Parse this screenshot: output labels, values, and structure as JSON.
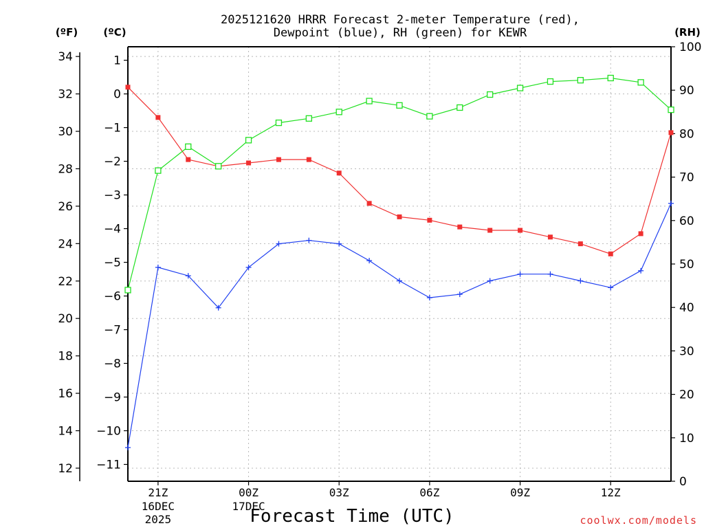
{
  "chart_data": {
    "type": "line",
    "title_line1": "2025121620 HRRR Forecast 2-meter Temperature (red),",
    "title_line2": "Dewpoint (blue), RH (green) for KEWR",
    "xlabel": "Forecast Time (UTC)",
    "credit": "coolwx.com/models",
    "left_axis_f_label": "(ºF)",
    "left_axis_c_label": "(ºC)",
    "right_axis_label": "(RH)",
    "f_ticks": [
      12,
      14,
      16,
      18,
      20,
      22,
      24,
      26,
      28,
      30,
      32,
      34
    ],
    "c_ticks": [
      -11,
      -10,
      -9,
      -8,
      -7,
      -6,
      -5,
      -4,
      -3,
      -2,
      -1,
      0,
      1
    ],
    "rh_ticks": [
      0,
      10,
      20,
      30,
      40,
      50,
      60,
      70,
      80,
      90,
      100
    ],
    "c_range": [
      -11.5,
      1.4
    ],
    "rh_range": [
      0,
      100
    ],
    "x_hours": [
      20,
      21,
      22,
      23,
      24,
      25,
      26,
      27,
      28,
      29,
      30,
      31,
      32,
      33,
      34,
      35,
      36,
      37,
      38
    ],
    "x_ticks": [
      {
        "hour": 21,
        "label": "21Z",
        "sub1": "16DEC",
        "sub2": "2025"
      },
      {
        "hour": 24,
        "label": "00Z",
        "sub1": "17DEC",
        "sub2": ""
      },
      {
        "hour": 27,
        "label": "03Z",
        "sub1": "",
        "sub2": ""
      },
      {
        "hour": 30,
        "label": "06Z",
        "sub1": "",
        "sub2": ""
      },
      {
        "hour": 33,
        "label": "09Z",
        "sub1": "",
        "sub2": ""
      },
      {
        "hour": 36,
        "label": "12Z",
        "sub1": "",
        "sub2": ""
      }
    ],
    "series": [
      {
        "name": "Temperature",
        "color": "#f03030",
        "axis": "celsius",
        "marker": "filled-square",
        "values": [
          0.2,
          -0.7,
          -1.95,
          -2.15,
          -2.05,
          -1.95,
          -1.95,
          -2.35,
          -3.25,
          -3.65,
          -3.75,
          -3.95,
          -4.05,
          -4.05,
          -4.25,
          -4.45,
          -4.75,
          -4.15,
          -1.15
        ]
      },
      {
        "name": "Dewpoint",
        "color": "#2040f0",
        "axis": "celsius",
        "marker": "plus",
        "values": [
          -10.5,
          -5.15,
          -5.4,
          -6.35,
          -5.15,
          -4.45,
          -4.35,
          -4.45,
          -4.95,
          -5.55,
          -6.05,
          -5.95,
          -5.55,
          -5.35,
          -5.35,
          -5.55,
          -5.75,
          -5.25,
          -3.25
        ]
      },
      {
        "name": "RH",
        "color": "#20e020",
        "axis": "rh",
        "marker": "open-square",
        "values": [
          44,
          71.5,
          77,
          72.5,
          78.5,
          82.5,
          83.5,
          85,
          87.5,
          86.5,
          84,
          86,
          89,
          90.5,
          92,
          92.3,
          92.8,
          91.8,
          85.5
        ]
      }
    ]
  }
}
